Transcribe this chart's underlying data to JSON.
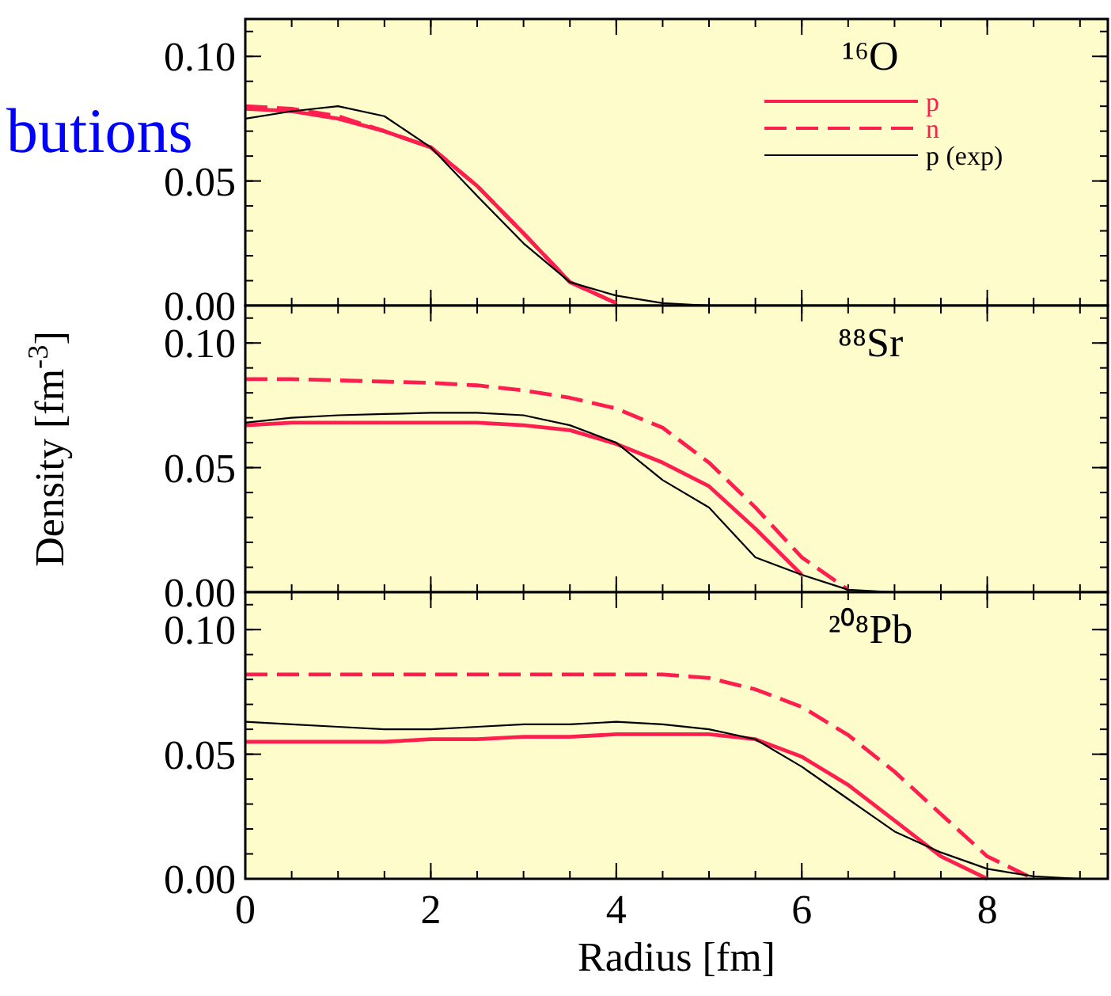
{
  "chart_data": [
    {
      "type": "line",
      "annotations": [
        "¹⁶O",
        "butions"
      ],
      "x": [
        0,
        0.5,
        1,
        1.5,
        2,
        2.5,
        3,
        3.5,
        4,
        4.5,
        5
      ],
      "xlim": [
        0,
        9.3
      ],
      "xticks": [
        0,
        2,
        4,
        6,
        8
      ],
      "ylim": [
        0,
        0.115
      ],
      "yticks": [
        {
          "value": 0,
          "label": "0.00"
        },
        {
          "value": 0.05,
          "label": "0.05"
        },
        {
          "value": 0.1,
          "label": "0.10"
        }
      ],
      "tick_labels": "y",
      "legend": "top right",
      "series": [
        {
          "name": "p",
          "color": "#ff1f4f",
          "line_style": "solid",
          "values": [
            0.079,
            0.078,
            0.075,
            0.07,
            0.0635,
            0.048,
            0.029,
            0.0094,
            0.001,
            null,
            null
          ]
        },
        {
          "name": "n",
          "color": "#ff1f4f",
          "line_style": "dashed",
          "values": [
            0.08,
            0.079,
            0.076,
            0.07,
            0.0635,
            0.048,
            0.029,
            0.0094,
            0.001,
            null,
            null
          ]
        },
        {
          "name": "p (exp)",
          "color": "#000000",
          "line_style": "solid",
          "values": [
            0.075,
            0.078,
            0.08,
            0.076,
            0.0635,
            0.044,
            0.025,
            0.0094,
            0.004,
            0.001,
            0
          ]
        }
      ]
    },
    {
      "type": "line",
      "annotations": [
        "⁸⁸Sr"
      ],
      "ylabel": "Density [fm$^{-3}$]",
      "x": [
        0,
        0.5,
        1,
        1.5,
        2,
        2.5,
        3,
        3.5,
        4,
        4.5,
        5,
        5.5,
        6,
        6.5,
        7
      ],
      "xlim": [
        0,
        9.3
      ],
      "xticks": [
        0,
        2,
        4,
        6,
        8
      ],
      "ylim": [
        0,
        0.115
      ],
      "yticks": [
        {
          "value": 0,
          "label": "0.00"
        },
        {
          "value": 0.05,
          "label": "0.05"
        },
        {
          "value": 0.1,
          "label": "0.10"
        }
      ],
      "tick_labels": "y",
      "series": [
        {
          "color": "#ff1f4f",
          "line_style": "solid",
          "values": [
            0.067,
            0.068,
            0.068,
            0.068,
            0.068,
            0.068,
            0.067,
            0.065,
            0.0595,
            0.052,
            0.0425,
            0.0255,
            0.007,
            null,
            null
          ]
        },
        {
          "color": "#ff1f4f",
          "line_style": "dashed",
          "values": [
            0.0855,
            0.0855,
            0.085,
            0.0845,
            0.084,
            0.083,
            0.081,
            0.078,
            0.0737,
            0.066,
            0.052,
            0.034,
            0.014,
            0.001,
            null
          ]
        },
        {
          "color": "#000000",
          "line_style": "solid",
          "values": [
            0.068,
            0.07,
            0.071,
            0.0715,
            0.072,
            0.072,
            0.071,
            0.067,
            0.06,
            0.045,
            0.034,
            0.014,
            0.007,
            0.001,
            0
          ]
        }
      ]
    },
    {
      "type": "line",
      "annotations": [
        "²⁰⁸Pb"
      ],
      "xlabel": "Radius [fm]",
      "x": [
        0,
        0.5,
        1,
        1.5,
        2,
        2.5,
        3,
        3.5,
        4,
        4.5,
        5,
        5.5,
        6,
        6.5,
        7,
        7.5,
        8,
        8.5,
        9
      ],
      "xlim": [
        0,
        9.3
      ],
      "xticks": [
        0,
        2,
        4,
        6,
        8
      ],
      "ylim": [
        0,
        0.115
      ],
      "yticks": [
        {
          "value": 0,
          "label": "0.00"
        },
        {
          "value": 0.05,
          "label": "0.05"
        },
        {
          "value": 0.1,
          "label": "0.10"
        }
      ],
      "series": [
        {
          "color": "#ff1f4f",
          "line_style": "solid",
          "values": [
            0.055,
            0.055,
            0.055,
            0.055,
            0.056,
            0.056,
            0.057,
            0.057,
            0.058,
            0.058,
            0.058,
            0.056,
            0.049,
            0.0377,
            0.0234,
            0.009,
            0,
            null,
            null
          ]
        },
        {
          "color": "#ff1f4f",
          "line_style": "dashed",
          "values": [
            0.082,
            0.082,
            0.082,
            0.082,
            0.082,
            0.082,
            0.082,
            0.082,
            0.082,
            0.082,
            0.0806,
            0.076,
            0.069,
            0.0577,
            0.043,
            0.026,
            0.009,
            0,
            null
          ]
        },
        {
          "color": "#000000",
          "line_style": "solid",
          "values": [
            0.063,
            0.062,
            0.061,
            0.06,
            0.06,
            0.061,
            0.062,
            0.062,
            0.063,
            0.062,
            0.06,
            0.056,
            0.045,
            0.032,
            0.019,
            0.0106,
            0.004,
            0.001,
            0
          ]
        }
      ]
    }
  ]
}
